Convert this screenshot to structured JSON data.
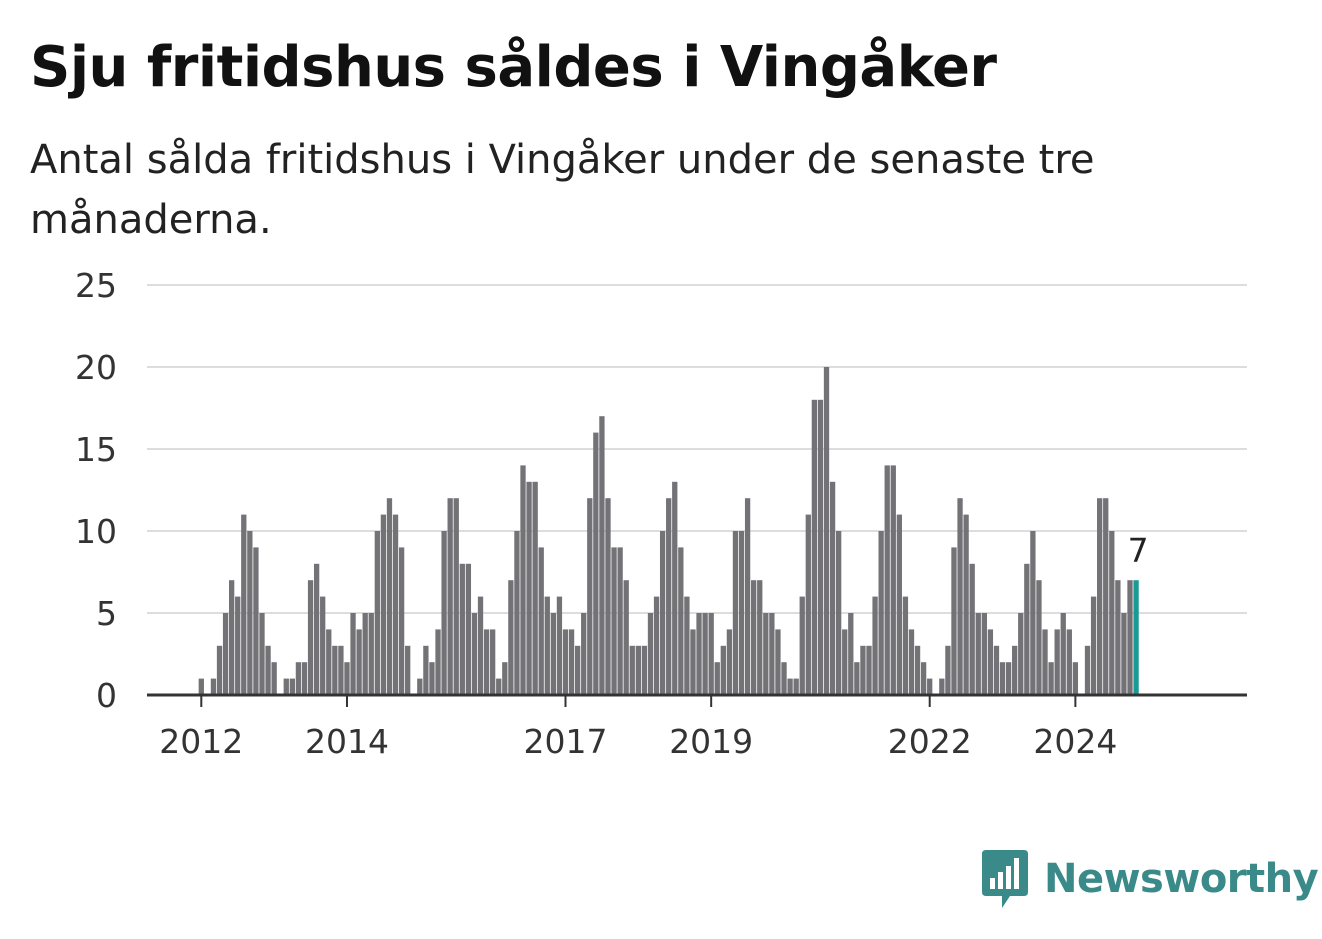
{
  "title": "Sju fritidshus såldes i Vingåker",
  "subtitle": "Antal sålda fritidshus i Vingåker under de senaste tre månaderna.",
  "brand": {
    "name": "Newsworthy",
    "color": "#3a8a8a"
  },
  "colors": {
    "bar": "#737276",
    "highlight": "#1a9a95",
    "grid": "#dddddd",
    "axis": "#333333"
  },
  "chart_data": {
    "type": "bar",
    "title": "Sju fritidshus såldes i Vingåker",
    "subtitle": "Antal sålda fritidshus i Vingåker under de senaste tre månaderna.",
    "xlabel": "",
    "ylabel": "",
    "ylim": [
      0,
      25
    ],
    "y_ticks": [
      0,
      5,
      10,
      15,
      20,
      25
    ],
    "x_ticks": [
      "2012",
      "2014",
      "2017",
      "2019",
      "2022",
      "2024"
    ],
    "grid": true,
    "start_month": "2011-05",
    "values": [
      0,
      0,
      0,
      0,
      0,
      0,
      0,
      0,
      1,
      0,
      1,
      3,
      5,
      7,
      6,
      11,
      10,
      9,
      5,
      3,
      2,
      0,
      1,
      1,
      2,
      2,
      7,
      8,
      6,
      4,
      3,
      3,
      2,
      5,
      4,
      5,
      5,
      10,
      11,
      12,
      11,
      9,
      3,
      0,
      1,
      3,
      2,
      4,
      10,
      12,
      12,
      8,
      8,
      5,
      6,
      4,
      4,
      1,
      2,
      7,
      10,
      14,
      13,
      13,
      9,
      6,
      5,
      6,
      4,
      4,
      3,
      5,
      12,
      16,
      17,
      12,
      9,
      9,
      7,
      3,
      3,
      3,
      5,
      6,
      10,
      12,
      13,
      9,
      6,
      4,
      5,
      5,
      5,
      2,
      3,
      4,
      10,
      10,
      12,
      7,
      7,
      5,
      5,
      4,
      2,
      1,
      1,
      6,
      11,
      18,
      18,
      20,
      13,
      10,
      4,
      5,
      2,
      3,
      3,
      6,
      10,
      14,
      14,
      11,
      6,
      4,
      3,
      2,
      1,
      0,
      1,
      3,
      9,
      12,
      11,
      8,
      5,
      5,
      4,
      3,
      2,
      2,
      3,
      5,
      8,
      10,
      7,
      4,
      2,
      4,
      5,
      4,
      2,
      0,
      3,
      6,
      12,
      12,
      10,
      7,
      5,
      7,
      7
    ],
    "highlight_last": true,
    "data_labels": [
      {
        "value": "7"
      }
    ]
  }
}
